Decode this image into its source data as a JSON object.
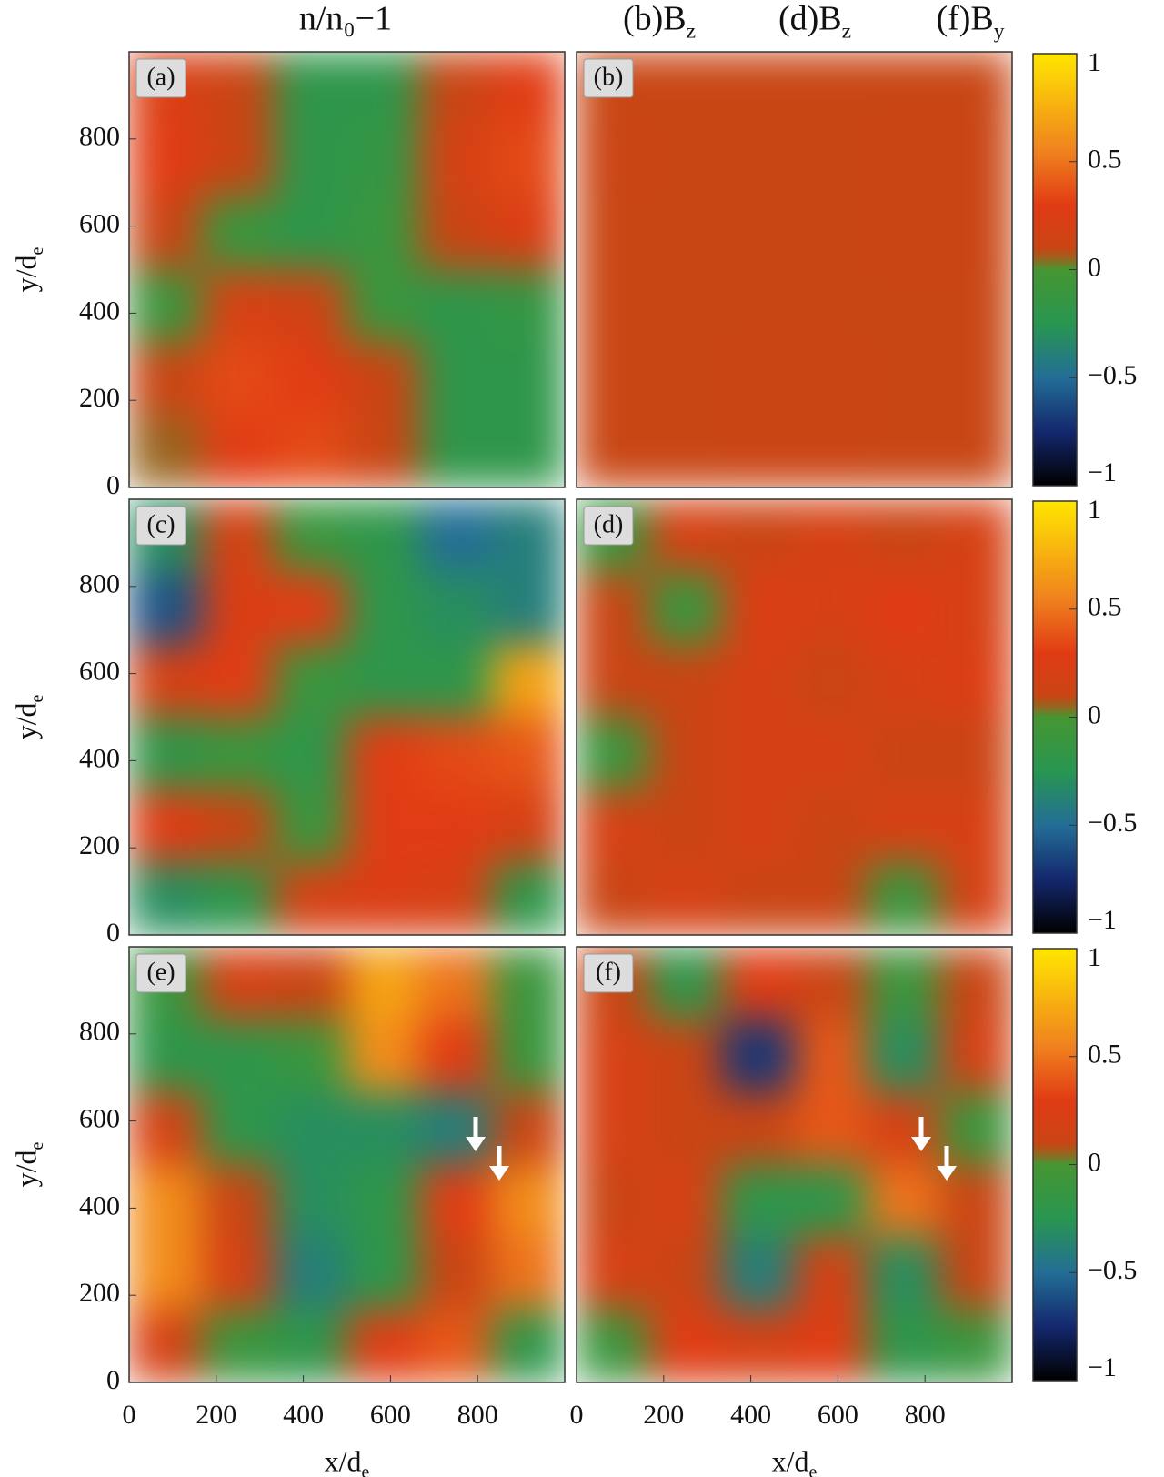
{
  "chart_data": [
    {
      "type": "heatmap",
      "panel_label": "(a)",
      "title": "n/n₀−1",
      "ylabel": "y/d",
      "ylabel_sub": "e",
      "xlim": [
        0,
        1000
      ],
      "ylim": [
        0,
        1000
      ],
      "yticks": [
        0,
        200,
        400,
        600,
        800
      ],
      "z": [
        [
          0.25,
          0.1,
          -0.2,
          -0.2,
          0.1,
          0.3
        ],
        [
          0.3,
          0.1,
          -0.2,
          -0.15,
          0.2,
          0.35
        ],
        [
          0.1,
          -0.1,
          -0.2,
          -0.1,
          0.1,
          0.25
        ],
        [
          -0.1,
          0.2,
          0.15,
          -0.1,
          -0.2,
          -0.15
        ],
        [
          0.1,
          0.35,
          0.3,
          0.1,
          -0.2,
          -0.2
        ],
        [
          0.05,
          0.3,
          0.35,
          0.1,
          -0.2,
          -0.2
        ]
      ]
    },
    {
      "type": "heatmap",
      "panel_label": "(b)",
      "title": "(b)B",
      "title_sub": "z",
      "xlim": [
        0,
        1000
      ],
      "ylim": [
        0,
        1000
      ],
      "z": [
        [
          0.08,
          0.08,
          0.08,
          0.08,
          0.08,
          0.08
        ],
        [
          0.1,
          0.08,
          0.08,
          0.08,
          0.1,
          0.1
        ],
        [
          0.08,
          0.08,
          0.08,
          0.08,
          0.1,
          0.1
        ],
        [
          0.08,
          0.08,
          0.08,
          0.08,
          0.08,
          0.08
        ],
        [
          0.08,
          0.08,
          0.1,
          0.1,
          0.08,
          0.08
        ],
        [
          0.08,
          0.08,
          0.1,
          0.1,
          0.08,
          0.08
        ]
      ]
    },
    {
      "type": "heatmap",
      "panel_label": "(c)",
      "ylabel": "y/d",
      "ylabel_sub": "e",
      "xlim": [
        0,
        1000
      ],
      "ylim": [
        0,
        1000
      ],
      "yticks": [
        0,
        200,
        400,
        600,
        800
      ],
      "z": [
        [
          -0.3,
          0.2,
          -0.1,
          -0.2,
          -0.5,
          -0.4
        ],
        [
          -0.6,
          0.25,
          0.3,
          -0.2,
          -0.3,
          -0.4
        ],
        [
          0.2,
          0.3,
          -0.1,
          -0.2,
          -0.2,
          0.7
        ],
        [
          -0.2,
          -0.1,
          -0.2,
          0.3,
          0.35,
          0.4
        ],
        [
          0.3,
          0.1,
          -0.1,
          0.3,
          0.3,
          0.2
        ],
        [
          -0.3,
          -0.2,
          0.2,
          0.25,
          0.2,
          -0.2
        ]
      ]
    },
    {
      "type": "heatmap",
      "panel_label": "(d)",
      "title": "(d)B",
      "title_sub": "z",
      "xlim": [
        0,
        1000
      ],
      "ylim": [
        0,
        1000
      ],
      "z": [
        [
          -0.1,
          0.2,
          0.1,
          0.2,
          0.1,
          0.2
        ],
        [
          0.1,
          -0.1,
          0.25,
          0.2,
          0.3,
          0.2
        ],
        [
          0.1,
          0.1,
          0.2,
          0.1,
          0.2,
          0.25
        ],
        [
          -0.1,
          0.1,
          0.2,
          0.2,
          0.1,
          0.1
        ],
        [
          0.2,
          0.1,
          0.2,
          0.1,
          0.2,
          0.2
        ],
        [
          0.1,
          0.2,
          0.1,
          0.1,
          -0.1,
          0.2
        ]
      ]
    },
    {
      "type": "heatmap",
      "panel_label": "(e)",
      "ylabel": "y/d",
      "ylabel_sub": "e",
      "xlabel": "x/d",
      "xlabel_sub": "e",
      "xlim": [
        0,
        1000
      ],
      "ylim": [
        0,
        1000
      ],
      "xticks": [
        0,
        200,
        400,
        600,
        800
      ],
      "yticks": [
        0,
        200,
        400,
        600,
        800
      ],
      "z": [
        [
          -0.1,
          0.2,
          0.1,
          0.7,
          0.5,
          -0.1
        ],
        [
          -0.2,
          -0.2,
          -0.1,
          0.6,
          0.3,
          -0.1
        ],
        [
          0.2,
          -0.2,
          -0.3,
          -0.3,
          -0.4,
          0.1
        ],
        [
          0.6,
          0.1,
          -0.3,
          -0.2,
          0.3,
          0.6
        ],
        [
          0.6,
          0.2,
          -0.4,
          -0.2,
          0.1,
          0.5
        ],
        [
          0.2,
          -0.1,
          -0.2,
          0.3,
          0.4,
          -0.2
        ]
      ]
    },
    {
      "type": "heatmap",
      "panel_label": "(f)",
      "title": "(f)B",
      "title_sub": "y",
      "xlabel": "x/d",
      "xlabel_sub": "e",
      "xlim": [
        0,
        1000
      ],
      "ylim": [
        0,
        1000
      ],
      "xticks": [
        0,
        200,
        400,
        600,
        800
      ],
      "z": [
        [
          0.1,
          -0.2,
          0.3,
          0.1,
          -0.1,
          0.1
        ],
        [
          0.2,
          0.1,
          -0.7,
          0.4,
          -0.3,
          0.2
        ],
        [
          0.2,
          0.1,
          0.1,
          0.4,
          0.2,
          -0.1
        ],
        [
          0.1,
          0.2,
          -0.2,
          -0.2,
          0.5,
          0.1
        ],
        [
          0.2,
          0.1,
          -0.4,
          0.2,
          -0.3,
          0.1
        ],
        [
          -0.1,
          0.3,
          0.2,
          0.3,
          -0.2,
          -0.1
        ]
      ]
    },
    {
      "type": "colorbar",
      "ylim": [
        -1,
        1
      ],
      "yticks": [
        {
          "value": -1,
          "label": "−1"
        },
        {
          "value": -0.5,
          "label": "−0.5"
        },
        0,
        0.5,
        1
      ]
    },
    {
      "type": "colorbar",
      "ylim": [
        -1,
        1
      ],
      "yticks": [
        {
          "value": -1,
          "label": "−1"
        },
        {
          "value": -0.5,
          "label": "−0.5"
        },
        0,
        0.5,
        1
      ]
    },
    {
      "type": "colorbar",
      "ylim": [
        -1,
        1
      ],
      "yticks": [
        {
          "value": -1,
          "label": "−1"
        },
        {
          "value": -0.5,
          "label": "−0.5"
        },
        0,
        0.5,
        1
      ]
    }
  ]
}
